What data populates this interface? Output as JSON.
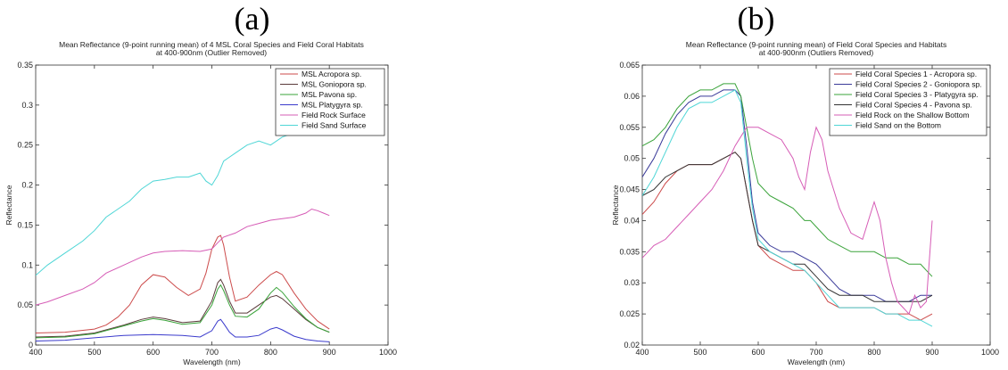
{
  "chart_data": [
    {
      "panel_label": "(a)",
      "type": "line",
      "title": [
        "Mean Reflectance (9-point running mean) of 4 MSL Coral Species and Field Coral Habitats",
        "at 400-900nm (Outlier Removed)"
      ],
      "xlabel": "Wavelength (nm)",
      "ylabel": "Reflectance",
      "xlim": [
        400,
        1000
      ],
      "ylim": [
        0,
        0.35
      ],
      "xticks": [
        400,
        500,
        600,
        700,
        800,
        900,
        1000
      ],
      "yticks": [
        0,
        0.05,
        0.1,
        0.15,
        0.2,
        0.25,
        0.3,
        0.35
      ],
      "ytick_labels": [
        "0",
        "0.05",
        "0.1",
        "0.15",
        "0.2",
        "0.25",
        "0.3",
        "0.35"
      ],
      "legend_position": "top-right",
      "series": [
        {
          "name": "MSL Acropora sp.",
          "color": "#cc4b4b",
          "x": [
            400,
            450,
            500,
            520,
            540,
            560,
            580,
            600,
            620,
            640,
            660,
            680,
            690,
            700,
            710,
            715,
            720,
            730,
            740,
            760,
            780,
            800,
            810,
            820,
            840,
            860,
            880,
            900
          ],
          "y": [
            0.015,
            0.016,
            0.02,
            0.025,
            0.035,
            0.05,
            0.075,
            0.088,
            0.085,
            0.072,
            0.062,
            0.07,
            0.09,
            0.12,
            0.135,
            0.137,
            0.125,
            0.085,
            0.055,
            0.06,
            0.075,
            0.088,
            0.092,
            0.088,
            0.065,
            0.045,
            0.03,
            0.02
          ]
        },
        {
          "name": "MSL Goniopora sp.",
          "color": "#5b3b3b",
          "x": [
            400,
            450,
            500,
            550,
            580,
            600,
            620,
            650,
            680,
            700,
            710,
            715,
            720,
            730,
            740,
            760,
            780,
            800,
            810,
            820,
            840,
            860,
            880,
            900
          ],
          "y": [
            0.01,
            0.011,
            0.015,
            0.025,
            0.032,
            0.035,
            0.033,
            0.028,
            0.03,
            0.055,
            0.078,
            0.082,
            0.075,
            0.055,
            0.04,
            0.04,
            0.05,
            0.06,
            0.062,
            0.058,
            0.045,
            0.032,
            0.022,
            0.016
          ]
        },
        {
          "name": "MSL Pavona sp.",
          "color": "#3aa33a",
          "x": [
            400,
            450,
            500,
            550,
            580,
            600,
            620,
            650,
            680,
            700,
            710,
            715,
            720,
            730,
            740,
            760,
            780,
            800,
            810,
            820,
            840,
            860,
            880,
            900
          ],
          "y": [
            0.009,
            0.01,
            0.014,
            0.024,
            0.03,
            0.033,
            0.031,
            0.026,
            0.028,
            0.05,
            0.07,
            0.075,
            0.068,
            0.05,
            0.036,
            0.035,
            0.045,
            0.065,
            0.072,
            0.066,
            0.048,
            0.033,
            0.022,
            0.016
          ]
        },
        {
          "name": "MSL Platygyra sp.",
          "color": "#3a3acc",
          "x": [
            400,
            450,
            500,
            550,
            600,
            650,
            680,
            700,
            710,
            715,
            720,
            730,
            740,
            760,
            780,
            800,
            810,
            820,
            840,
            860,
            880,
            900
          ],
          "y": [
            0.005,
            0.006,
            0.009,
            0.012,
            0.013,
            0.012,
            0.01,
            0.018,
            0.03,
            0.032,
            0.027,
            0.016,
            0.01,
            0.01,
            0.012,
            0.02,
            0.022,
            0.019,
            0.011,
            0.007,
            0.005,
            0.004
          ]
        },
        {
          "name": "Field Rock Surface",
          "color": "#d65cb6",
          "x": [
            400,
            420,
            450,
            480,
            500,
            520,
            550,
            580,
            600,
            620,
            650,
            680,
            700,
            710,
            720,
            740,
            760,
            780,
            800,
            820,
            840,
            860,
            870,
            880,
            890,
            900
          ],
          "y": [
            0.05,
            0.054,
            0.062,
            0.07,
            0.078,
            0.09,
            0.1,
            0.11,
            0.115,
            0.117,
            0.118,
            0.117,
            0.12,
            0.128,
            0.135,
            0.14,
            0.148,
            0.152,
            0.156,
            0.158,
            0.16,
            0.165,
            0.17,
            0.168,
            0.165,
            0.162
          ]
        },
        {
          "name": "Field Sand Surface",
          "color": "#4fd6d6",
          "x": [
            400,
            420,
            450,
            480,
            500,
            520,
            540,
            560,
            580,
            600,
            620,
            640,
            660,
            680,
            690,
            700,
            710,
            720,
            740,
            760,
            780,
            800,
            820,
            840,
            850
          ],
          "y": [
            0.087,
            0.1,
            0.115,
            0.13,
            0.143,
            0.16,
            0.17,
            0.18,
            0.195,
            0.205,
            0.207,
            0.21,
            0.21,
            0.215,
            0.205,
            0.2,
            0.212,
            0.23,
            0.24,
            0.25,
            0.255,
            0.25,
            0.26,
            0.265,
            0.265
          ]
        }
      ]
    },
    {
      "panel_label": "(b)",
      "type": "line",
      "title": [
        "Mean Reflectance (9-point running mean) of Field Coral Species and Habitats",
        "at 400-900nm (Outliers Removed)"
      ],
      "xlabel": "Wavelength (nm)",
      "ylabel": "Reflectance",
      "xlim": [
        400,
        1000
      ],
      "ylim": [
        0.02,
        0.065
      ],
      "xticks": [
        400,
        500,
        600,
        700,
        800,
        900,
        1000
      ],
      "yticks": [
        0.02,
        0.025,
        0.03,
        0.035,
        0.04,
        0.045,
        0.05,
        0.055,
        0.06,
        0.065
      ],
      "ytick_labels": [
        "0.02",
        "0.025",
        "0.03",
        "0.035",
        "0.04",
        "0.045",
        "0.05",
        "0.055",
        "0.06",
        "0.065"
      ],
      "legend_position": "top-right",
      "series": [
        {
          "name": "Field Coral Species 1 - Acropora sp.",
          "color": "#cc4b4b",
          "x": [
            400,
            420,
            440,
            460,
            480,
            500,
            520,
            540,
            560,
            570,
            580,
            590,
            600,
            620,
            640,
            660,
            680,
            700,
            720,
            740,
            760,
            780,
            800,
            820,
            840,
            860,
            880,
            900
          ],
          "y": [
            0.041,
            0.043,
            0.046,
            0.048,
            0.049,
            0.049,
            0.049,
            0.05,
            0.051,
            0.05,
            0.045,
            0.04,
            0.036,
            0.034,
            0.033,
            0.032,
            0.032,
            0.03,
            0.027,
            0.026,
            0.026,
            0.026,
            0.026,
            0.025,
            0.025,
            0.025,
            0.024,
            0.025
          ]
        },
        {
          "name": "Field Coral Species 2 - Goniopora sp.",
          "color": "#3a3a99",
          "x": [
            400,
            420,
            440,
            460,
            480,
            500,
            520,
            540,
            560,
            570,
            580,
            590,
            600,
            620,
            640,
            660,
            680,
            700,
            720,
            740,
            760,
            780,
            800,
            820,
            840,
            860,
            880,
            900
          ],
          "y": [
            0.047,
            0.05,
            0.054,
            0.057,
            0.059,
            0.06,
            0.06,
            0.061,
            0.061,
            0.06,
            0.052,
            0.043,
            0.038,
            0.036,
            0.035,
            0.035,
            0.034,
            0.033,
            0.031,
            0.029,
            0.028,
            0.028,
            0.028,
            0.027,
            0.027,
            0.027,
            0.028,
            0.028
          ]
        },
        {
          "name": "Field Coral Species 3 - Platygyra sp.",
          "color": "#3aa33a",
          "x": [
            400,
            420,
            440,
            460,
            480,
            500,
            520,
            540,
            560,
            570,
            580,
            590,
            600,
            620,
            640,
            660,
            680,
            690,
            700,
            720,
            740,
            760,
            780,
            800,
            820,
            840,
            860,
            880,
            890,
            900
          ],
          "y": [
            0.052,
            0.053,
            0.055,
            0.058,
            0.06,
            0.061,
            0.061,
            0.062,
            0.062,
            0.06,
            0.055,
            0.05,
            0.046,
            0.044,
            0.043,
            0.042,
            0.04,
            0.04,
            0.039,
            0.037,
            0.036,
            0.035,
            0.035,
            0.035,
            0.034,
            0.034,
            0.033,
            0.033,
            0.032,
            0.031
          ]
        },
        {
          "name": "Field Coral Species 4 - Pavona sp.",
          "color": "#333333",
          "x": [
            400,
            420,
            440,
            460,
            480,
            500,
            520,
            540,
            560,
            570,
            580,
            590,
            600,
            620,
            640,
            660,
            680,
            700,
            720,
            740,
            760,
            780,
            800,
            820,
            840,
            860,
            880,
            900
          ],
          "y": [
            0.044,
            0.045,
            0.047,
            0.048,
            0.049,
            0.049,
            0.049,
            0.05,
            0.051,
            0.05,
            0.045,
            0.04,
            0.036,
            0.035,
            0.034,
            0.033,
            0.033,
            0.031,
            0.029,
            0.028,
            0.028,
            0.028,
            0.027,
            0.027,
            0.027,
            0.027,
            0.027,
            0.028
          ]
        },
        {
          "name": "Field Rock on the Shallow Bottom",
          "color": "#d65cb6",
          "x": [
            400,
            420,
            440,
            460,
            480,
            500,
            520,
            540,
            560,
            580,
            590,
            600,
            620,
            640,
            660,
            670,
            680,
            690,
            700,
            710,
            720,
            730,
            740,
            760,
            780,
            790,
            800,
            810,
            820,
            830,
            840,
            850,
            860,
            870,
            880,
            890,
            900
          ],
          "y": [
            0.034,
            0.036,
            0.037,
            0.039,
            0.041,
            0.043,
            0.045,
            0.048,
            0.052,
            0.055,
            0.055,
            0.055,
            0.054,
            0.053,
            0.05,
            0.047,
            0.045,
            0.051,
            0.055,
            0.053,
            0.048,
            0.045,
            0.042,
            0.038,
            0.037,
            0.04,
            0.043,
            0.04,
            0.034,
            0.03,
            0.027,
            0.026,
            0.025,
            0.028,
            0.026,
            0.027,
            0.04
          ]
        },
        {
          "name": "Field Sand on the Bottom",
          "color": "#4fd6d6",
          "x": [
            400,
            420,
            440,
            460,
            480,
            500,
            520,
            540,
            560,
            570,
            580,
            590,
            600,
            620,
            640,
            660,
            680,
            700,
            720,
            740,
            760,
            780,
            800,
            820,
            840,
            860,
            880,
            900
          ],
          "y": [
            0.044,
            0.047,
            0.051,
            0.055,
            0.058,
            0.059,
            0.059,
            0.06,
            0.061,
            0.059,
            0.05,
            0.042,
            0.037,
            0.035,
            0.034,
            0.033,
            0.032,
            0.03,
            0.028,
            0.026,
            0.026,
            0.026,
            0.026,
            0.025,
            0.025,
            0.024,
            0.024,
            0.023
          ]
        }
      ]
    }
  ]
}
